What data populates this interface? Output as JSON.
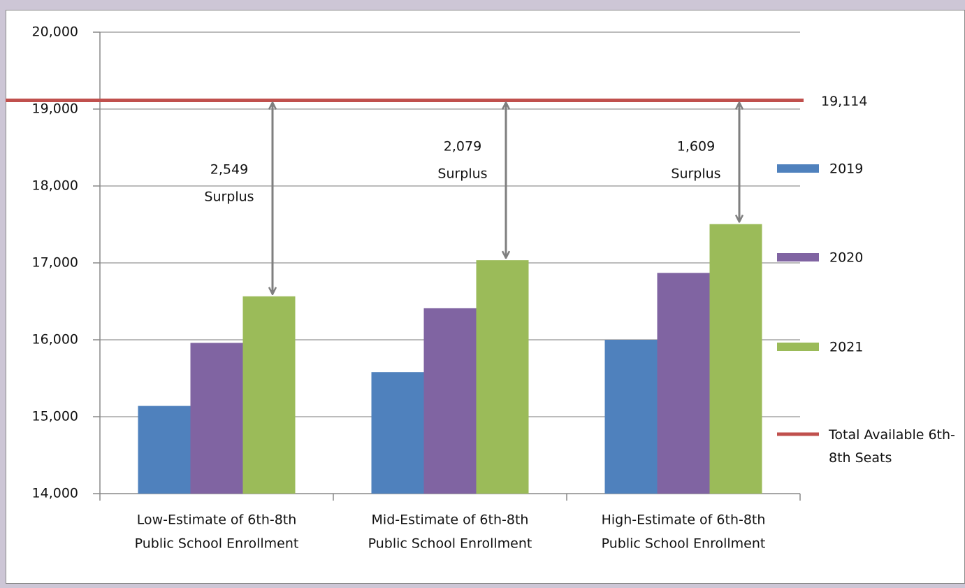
{
  "chart_data": {
    "type": "bar",
    "categories": [
      [
        "Low-Estimate of 6th-8th",
        "Public School Enrollment"
      ],
      [
        "Mid-Estimate of  6th-8th",
        "Public School Enrollment"
      ],
      [
        "High-Estimate of  6th-8th",
        "Public School Enrollment"
      ]
    ],
    "series": [
      {
        "name": "2019",
        "color": "#4f81bd",
        "values": [
          15140,
          15580,
          16000
        ]
      },
      {
        "name": "2020",
        "color": "#8064a2",
        "values": [
          15960,
          16410,
          16870
        ]
      },
      {
        "name": "2021",
        "color": "#9bbb59",
        "values": [
          16565,
          17035,
          17505
        ]
      }
    ],
    "reference_line": {
      "name": "Total Available 6th-8th Seats",
      "value": 19114,
      "value_label": "19,114",
      "color": "#c0504d"
    },
    "annotations": [
      [
        "2,549",
        "Surplus"
      ],
      [
        "2,079",
        "Surplus"
      ],
      [
        "1,609",
        "Surplus"
      ]
    ],
    "ylim": [
      14000,
      20000
    ],
    "yticks": [
      {
        "value": 14000,
        "label": "14,000"
      },
      {
        "value": 15000,
        "label": "15,000"
      },
      {
        "value": 16000,
        "label": "16,000"
      },
      {
        "value": 17000,
        "label": "17,000"
      },
      {
        "value": 18000,
        "label": "18,000"
      },
      {
        "value": 19000,
        "label": "19,000"
      },
      {
        "value": 20000,
        "label": "20,000"
      }
    ],
    "grid": true
  }
}
